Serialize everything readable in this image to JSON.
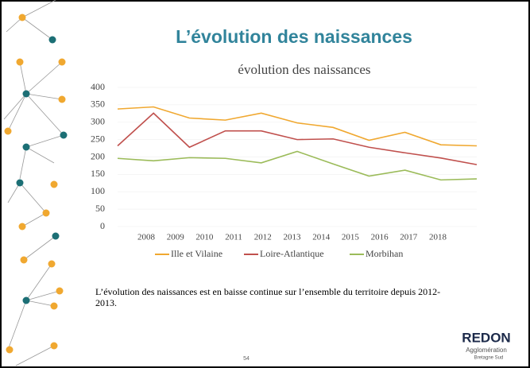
{
  "header": {
    "title": "L’évolution des naissances"
  },
  "chart_data": {
    "type": "line",
    "title": "évolution des naissances",
    "categories": [
      "2008",
      "2009",
      "2010",
      "2011",
      "2012",
      "2013",
      "2014",
      "2015",
      "2016",
      "2017",
      "2018"
    ],
    "series": [
      {
        "name": "Ille et Vilaine",
        "color": "#f0a830",
        "values": [
          338,
          344,
          312,
          306,
          326,
          298,
          285,
          248,
          271,
          235,
          232
        ]
      },
      {
        "name": "Loire-Atlantique",
        "color": "#c0504d",
        "values": [
          232,
          326,
          228,
          275,
          275,
          250,
          252,
          228,
          212,
          197,
          178
        ]
      },
      {
        "name": "Morbihan",
        "color": "#9bbb59",
        "values": [
          196,
          189,
          198,
          196,
          183,
          216,
          180,
          145,
          162,
          134,
          137
        ]
      }
    ],
    "ylim": [
      0,
      400
    ],
    "yticks": [
      0,
      50,
      100,
      150,
      200,
      250,
      300,
      350,
      400
    ],
    "grid": true
  },
  "body": {
    "text": "L’évolution des naissances est en baisse continue sur l’ensemble du territoire depuis 2012-2013."
  },
  "footer": {
    "page": "54",
    "logo": "REDON",
    "logo_sub1": "Agglomération",
    "logo_sub2": "Bretagne Sud"
  }
}
